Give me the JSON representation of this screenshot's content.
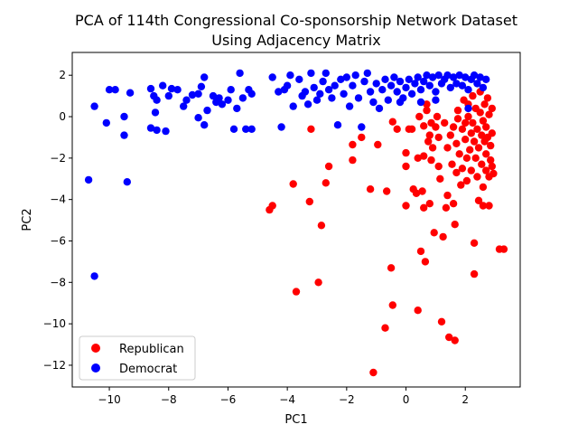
{
  "chart_data": {
    "type": "scatter",
    "title": "PCA of 114th Congressional Co-sponsorship Network Dataset\nUsing Adjacency Matrix",
    "title_lines": [
      "PCA of 114th Congressional Co-sponsorship Network Dataset",
      "Using Adjacency Matrix"
    ],
    "xlabel": "PC1",
    "ylabel": "PC2",
    "xlim": [
      -11.25,
      3.85
    ],
    "ylim": [
      -13.05,
      3.1
    ],
    "xticks": [
      -10,
      -8,
      -6,
      -4,
      -2,
      0,
      2
    ],
    "yticks": [
      -12,
      -10,
      -8,
      -6,
      -4,
      -2,
      0,
      2
    ],
    "xtick_labels": [
      "−10",
      "−8",
      "−6",
      "−4",
      "−2",
      "0",
      "2"
    ],
    "ytick_labels": [
      "−12",
      "−10",
      "−8",
      "−6",
      "−4",
      "−2",
      "0",
      "2"
    ],
    "grid": false,
    "legend_position": "lower-left",
    "series": [
      {
        "name": "Republican",
        "color": "#ff0000",
        "points": [
          [
            -4.6,
            -4.5
          ],
          [
            -4.5,
            -4.3
          ],
          [
            -3.8,
            -3.25
          ],
          [
            -3.7,
            -8.45
          ],
          [
            -3.25,
            -4.1
          ],
          [
            -3.2,
            -0.6
          ],
          [
            -2.95,
            -8.0
          ],
          [
            -2.85,
            -5.25
          ],
          [
            -2.7,
            -3.2
          ],
          [
            -2.6,
            -2.4
          ],
          [
            -1.8,
            -1.35
          ],
          [
            -1.8,
            -2.1
          ],
          [
            -1.5,
            -1.0
          ],
          [
            -1.2,
            -3.5
          ],
          [
            -1.1,
            -12.35
          ],
          [
            -0.95,
            -1.35
          ],
          [
            -0.7,
            -10.2
          ],
          [
            -0.65,
            -3.6
          ],
          [
            -0.5,
            -7.3
          ],
          [
            -0.45,
            -9.1
          ],
          [
            -0.45,
            -0.25
          ],
          [
            -0.3,
            -0.6
          ],
          [
            0.0,
            -4.3
          ],
          [
            0.0,
            -2.4
          ],
          [
            0.0,
            -1.75
          ],
          [
            0.1,
            -0.6
          ],
          [
            0.2,
            -0.6
          ],
          [
            0.25,
            -3.5
          ],
          [
            0.35,
            -3.7
          ],
          [
            0.4,
            -2.0
          ],
          [
            0.4,
            -9.35
          ],
          [
            0.45,
            0.0
          ],
          [
            0.5,
            -6.5
          ],
          [
            0.55,
            -3.6
          ],
          [
            0.6,
            -1.9
          ],
          [
            0.6,
            -4.4
          ],
          [
            0.6,
            -0.45
          ],
          [
            0.65,
            -7.0
          ],
          [
            0.7,
            0.3
          ],
          [
            0.7,
            0.6
          ],
          [
            0.75,
            -1.2
          ],
          [
            0.8,
            -4.2
          ],
          [
            0.8,
            -0.9
          ],
          [
            0.85,
            -0.3
          ],
          [
            0.85,
            -2.1
          ],
          [
            0.9,
            -1.5
          ],
          [
            0.95,
            -5.6
          ],
          [
            1.0,
            -0.5
          ],
          [
            1.05,
            0.0
          ],
          [
            1.1,
            -1.0
          ],
          [
            1.1,
            -2.4
          ],
          [
            1.15,
            -3.0
          ],
          [
            1.2,
            -9.9
          ],
          [
            1.25,
            -5.8
          ],
          [
            1.3,
            -0.3
          ],
          [
            1.35,
            -4.4
          ],
          [
            1.4,
            -1.5
          ],
          [
            1.4,
            -3.8
          ],
          [
            1.45,
            -10.65
          ],
          [
            1.5,
            -0.9
          ],
          [
            1.55,
            -2.3
          ],
          [
            1.6,
            -0.5
          ],
          [
            1.6,
            -4.2
          ],
          [
            1.65,
            -5.2
          ],
          [
            1.65,
            -10.8
          ],
          [
            1.7,
            -1.3
          ],
          [
            1.7,
            -2.7
          ],
          [
            1.75,
            0.3
          ],
          [
            1.75,
            -0.1
          ],
          [
            1.8,
            -1.8
          ],
          [
            1.85,
            -3.3
          ],
          [
            1.9,
            -0.6
          ],
          [
            1.9,
            -2.5
          ],
          [
            1.95,
            0.8
          ],
          [
            2.0,
            -0.3
          ],
          [
            2.0,
            -1.1
          ],
          [
            2.05,
            -2.0
          ],
          [
            2.05,
            -3.1
          ],
          [
            2.1,
            0.0
          ],
          [
            2.1,
            0.6
          ],
          [
            2.15,
            -1.6
          ],
          [
            2.2,
            -0.8
          ],
          [
            2.2,
            -2.6
          ],
          [
            2.25,
            1.0
          ],
          [
            2.25,
            -0.3
          ],
          [
            2.3,
            -6.1
          ],
          [
            2.3,
            -7.6
          ],
          [
            2.3,
            -1.2
          ],
          [
            2.35,
            -2.0
          ],
          [
            2.35,
            0.4
          ],
          [
            2.4,
            -0.6
          ],
          [
            2.4,
            -2.9
          ],
          [
            2.45,
            -4.05
          ],
          [
            2.45,
            -1.5
          ],
          [
            2.5,
            0.2
          ],
          [
            2.5,
            1.2
          ],
          [
            2.55,
            -0.9
          ],
          [
            2.55,
            -2.3
          ],
          [
            2.6,
            -3.4
          ],
          [
            2.6,
            -0.2
          ],
          [
            2.6,
            -4.3
          ],
          [
            2.65,
            -1.2
          ],
          [
            2.65,
            0.6
          ],
          [
            2.7,
            -1.8
          ],
          [
            2.7,
            -0.5
          ],
          [
            2.7,
            -2.6
          ],
          [
            2.75,
            0.9
          ],
          [
            2.75,
            -1.0
          ],
          [
            2.8,
            -2.9
          ],
          [
            2.8,
            0.1
          ],
          [
            2.8,
            -4.3
          ],
          [
            2.85,
            -1.4
          ],
          [
            2.85,
            -2.1
          ],
          [
            2.9,
            0.4
          ],
          [
            2.9,
            -0.8
          ],
          [
            2.9,
            -2.4
          ],
          [
            2.95,
            -2.75
          ],
          [
            3.15,
            -6.4
          ],
          [
            3.3,
            -6.4
          ]
        ]
      },
      {
        "name": "Democrat",
        "color": "#0000ff",
        "points": [
          [
            -10.7,
            -3.05
          ],
          [
            -10.5,
            -7.7
          ],
          [
            -10.5,
            0.5
          ],
          [
            -10.1,
            -0.3
          ],
          [
            -10.0,
            1.3
          ],
          [
            -9.8,
            1.3
          ],
          [
            -9.5,
            0.0
          ],
          [
            -9.5,
            -0.9
          ],
          [
            -9.4,
            -3.15
          ],
          [
            -9.3,
            1.15
          ],
          [
            -8.6,
            1.35
          ],
          [
            -8.6,
            -0.55
          ],
          [
            -8.5,
            1.0
          ],
          [
            -8.45,
            0.2
          ],
          [
            -8.4,
            -0.65
          ],
          [
            -8.4,
            0.8
          ],
          [
            -8.2,
            1.5
          ],
          [
            -8.1,
            -0.7
          ],
          [
            -8.0,
            1.0
          ],
          [
            -7.9,
            1.35
          ],
          [
            -7.7,
            1.3
          ],
          [
            -7.5,
            0.5
          ],
          [
            -7.4,
            0.8
          ],
          [
            -7.2,
            1.05
          ],
          [
            -7.0,
            1.1
          ],
          [
            -7.0,
            -0.05
          ],
          [
            -6.9,
            1.45
          ],
          [
            -6.8,
            -0.4
          ],
          [
            -6.8,
            1.9
          ],
          [
            -6.7,
            0.3
          ],
          [
            -6.5,
            1.0
          ],
          [
            -6.4,
            0.7
          ],
          [
            -6.3,
            0.9
          ],
          [
            -6.2,
            0.6
          ],
          [
            -6.0,
            0.8
          ],
          [
            -5.9,
            1.3
          ],
          [
            -5.8,
            -0.6
          ],
          [
            -5.7,
            0.4
          ],
          [
            -5.6,
            2.1
          ],
          [
            -5.5,
            0.9
          ],
          [
            -5.4,
            -0.6
          ],
          [
            -5.3,
            1.3
          ],
          [
            -5.2,
            1.1
          ],
          [
            -5.2,
            -0.6
          ],
          [
            -4.5,
            1.9
          ],
          [
            -4.3,
            1.2
          ],
          [
            -4.2,
            -0.5
          ],
          [
            -4.1,
            1.3
          ],
          [
            -4.0,
            1.5
          ],
          [
            -3.9,
            2.0
          ],
          [
            -3.8,
            0.5
          ],
          [
            -3.6,
            1.8
          ],
          [
            -3.5,
            1.0
          ],
          [
            -3.4,
            1.2
          ],
          [
            -3.3,
            0.6
          ],
          [
            -3.2,
            2.1
          ],
          [
            -3.1,
            1.4
          ],
          [
            -3.0,
            0.8
          ],
          [
            -2.9,
            1.1
          ],
          [
            -2.8,
            1.7
          ],
          [
            -2.7,
            2.1
          ],
          [
            -2.6,
            1.3
          ],
          [
            -2.5,
            0.9
          ],
          [
            -2.4,
            1.5
          ],
          [
            -2.3,
            -0.4
          ],
          [
            -2.2,
            1.8
          ],
          [
            -2.1,
            1.1
          ],
          [
            -2.0,
            1.9
          ],
          [
            -1.9,
            0.5
          ],
          [
            -1.8,
            1.5
          ],
          [
            -1.7,
            2.0
          ],
          [
            -1.6,
            0.9
          ],
          [
            -1.5,
            -0.5
          ],
          [
            -1.4,
            1.7
          ],
          [
            -1.3,
            2.1
          ],
          [
            -1.2,
            1.2
          ],
          [
            -1.1,
            0.7
          ],
          [
            -1.0,
            1.6
          ],
          [
            -0.9,
            0.4
          ],
          [
            -0.8,
            1.3
          ],
          [
            -0.7,
            1.8
          ],
          [
            -0.6,
            0.8
          ],
          [
            -0.5,
            1.5
          ],
          [
            -0.4,
            1.9
          ],
          [
            -0.3,
            1.2
          ],
          [
            -0.2,
            1.7
          ],
          [
            -0.1,
            0.9
          ],
          [
            0.0,
            1.4
          ],
          [
            0.1,
            1.8
          ],
          [
            0.2,
            1.1
          ],
          [
            0.3,
            1.6
          ],
          [
            0.4,
            1.9
          ],
          [
            0.5,
            1.3
          ],
          [
            0.6,
            1.7
          ],
          [
            0.7,
            2.0
          ],
          [
            0.8,
            1.5
          ],
          [
            0.9,
            1.9
          ],
          [
            1.0,
            1.2
          ],
          [
            1.1,
            2.0
          ],
          [
            1.2,
            1.6
          ],
          [
            1.3,
            1.8
          ],
          [
            1.4,
            2.0
          ],
          [
            1.5,
            1.4
          ],
          [
            1.6,
            1.9
          ],
          [
            1.7,
            1.6
          ],
          [
            1.8,
            2.0
          ],
          [
            1.9,
            1.5
          ],
          [
            2.0,
            1.9
          ],
          [
            2.1,
            1.3
          ],
          [
            2.2,
            1.8
          ],
          [
            2.3,
            2.0
          ],
          [
            2.4,
            1.6
          ],
          [
            2.5,
            1.9
          ],
          [
            2.6,
            1.4
          ],
          [
            2.7,
            1.8
          ],
          [
            2.1,
            0.4
          ],
          [
            1.0,
            0.8
          ],
          [
            0.5,
            0.7
          ],
          [
            -0.2,
            0.7
          ]
        ]
      }
    ]
  }
}
